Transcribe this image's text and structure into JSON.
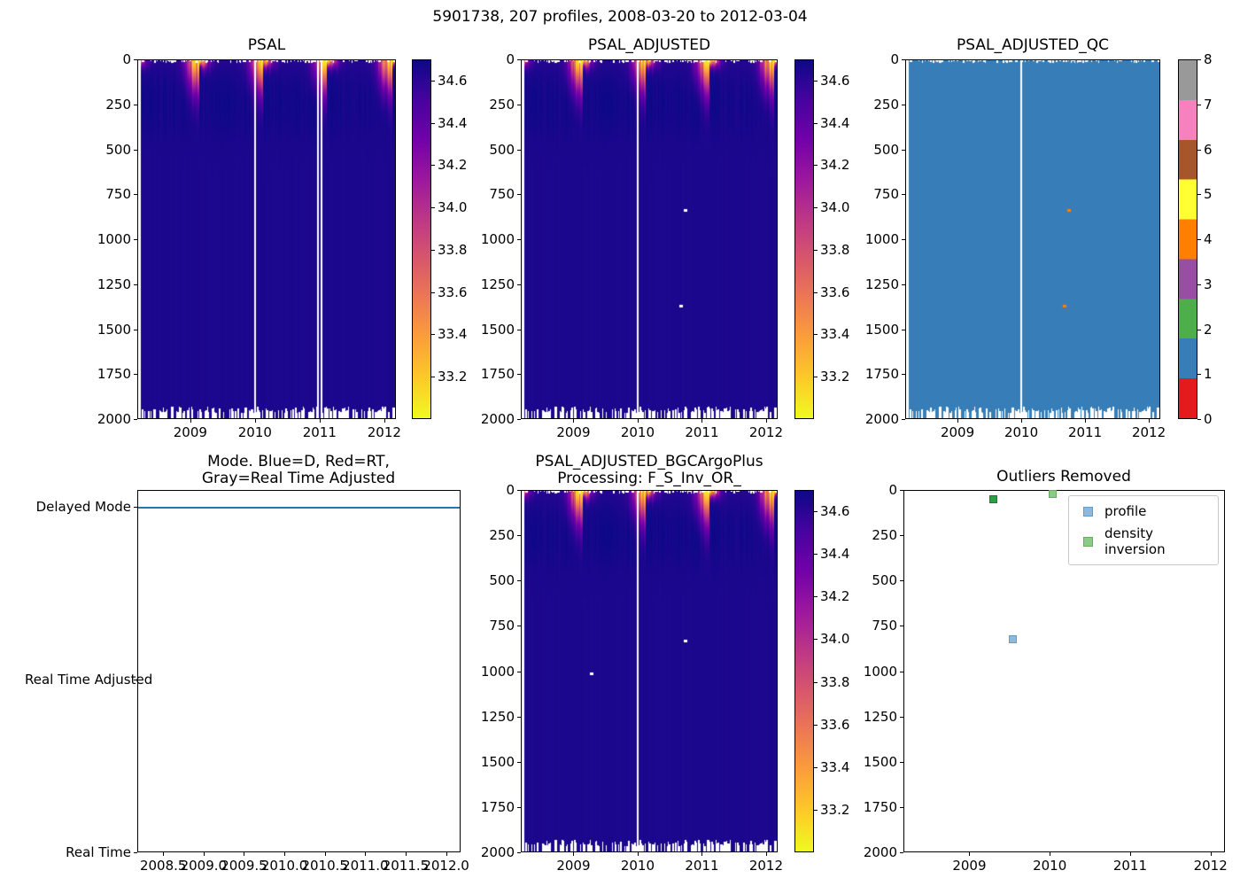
{
  "figure": {
    "title": "5901738, 207 profiles, 2008-03-20 to 2012-03-04",
    "platform_id": "5901738",
    "n_profiles": 207,
    "date_start": "2008-03-20",
    "date_end": "2012-03-04",
    "background": "#ffffff"
  },
  "chart_data": [
    {
      "type": "heatmap",
      "title": "PSAL",
      "x_axis": {
        "min": 2008.18,
        "max": 2012.18,
        "ticks": [
          [
            2009,
            "2009"
          ],
          [
            2010,
            "2010"
          ],
          [
            2011,
            "2011"
          ],
          [
            2012,
            "2012"
          ]
        ]
      },
      "y_axis": {
        "min": 0,
        "max": 2000,
        "inverted": true,
        "ticks": [
          [
            0,
            "0"
          ],
          [
            250,
            "250"
          ],
          [
            500,
            "500"
          ],
          [
            750,
            "750"
          ],
          [
            1000,
            "1000"
          ],
          [
            1250,
            "1250"
          ],
          [
            1500,
            "1500"
          ],
          [
            1750,
            "1750"
          ],
          [
            2000,
            "2000"
          ]
        ]
      },
      "colorbar": {
        "vmin": 33.0,
        "vmax": 34.7,
        "colormap": "plasma_r",
        "ticks": [
          [
            34.6,
            "34.6"
          ],
          [
            34.4,
            "34.4"
          ],
          [
            34.2,
            "34.2"
          ],
          [
            34.0,
            "34.0"
          ],
          [
            33.8,
            "33.8"
          ],
          [
            33.6,
            "33.6"
          ],
          [
            33.4,
            "33.4"
          ],
          [
            33.2,
            "33.2"
          ]
        ]
      },
      "n_profiles": 207,
      "data_time_range": [
        2008.22,
        2012.17
      ],
      "deep_value": 34.65,
      "surface_summer_min": 33.1,
      "missing_profile_lines": [
        2010.0,
        2010.98,
        2011.04
      ],
      "flagged_points": []
    },
    {
      "type": "heatmap",
      "title": "PSAL_ADJUSTED",
      "x_axis": {
        "min": 2008.18,
        "max": 2012.18,
        "ticks": [
          [
            2009,
            "2009"
          ],
          [
            2010,
            "2010"
          ],
          [
            2011,
            "2011"
          ],
          [
            2012,
            "2012"
          ]
        ]
      },
      "y_axis": {
        "min": 0,
        "max": 2000,
        "inverted": true,
        "ticks": [
          [
            0,
            "0"
          ],
          [
            250,
            "250"
          ],
          [
            500,
            "500"
          ],
          [
            750,
            "750"
          ],
          [
            1000,
            "1000"
          ],
          [
            1250,
            "1250"
          ],
          [
            1500,
            "1500"
          ],
          [
            1750,
            "1750"
          ],
          [
            2000,
            "2000"
          ]
        ]
      },
      "colorbar": {
        "vmin": 33.0,
        "vmax": 34.7,
        "colormap": "plasma_r",
        "ticks": [
          [
            34.6,
            "34.6"
          ],
          [
            34.4,
            "34.4"
          ],
          [
            34.2,
            "34.2"
          ],
          [
            34.0,
            "34.0"
          ],
          [
            33.8,
            "33.8"
          ],
          [
            33.6,
            "33.6"
          ],
          [
            33.4,
            "33.4"
          ],
          [
            33.2,
            "33.2"
          ]
        ]
      },
      "n_profiles": 207,
      "data_time_range": [
        2008.22,
        2012.17
      ],
      "deep_value": 34.65,
      "surface_summer_min": 33.1,
      "missing_profile_lines": [
        2010.0
      ],
      "flagged_points": [
        {
          "t": 2010.75,
          "depth": 837,
          "color": "#ffffff"
        },
        {
          "t": 2010.68,
          "depth": 1369,
          "color": "#ffffff"
        }
      ]
    },
    {
      "type": "heatmap",
      "title": "PSAL_ADJUSTED_QC",
      "x_axis": {
        "min": 2008.18,
        "max": 2012.18,
        "ticks": [
          [
            2009,
            "2009"
          ],
          [
            2010,
            "2010"
          ],
          [
            2011,
            "2011"
          ],
          [
            2012,
            "2012"
          ]
        ]
      },
      "y_axis": {
        "min": 0,
        "max": 2000,
        "inverted": true,
        "ticks": [
          [
            0,
            "0"
          ],
          [
            250,
            "250"
          ],
          [
            500,
            "500"
          ],
          [
            750,
            "750"
          ],
          [
            1000,
            "1000"
          ],
          [
            1250,
            "1250"
          ],
          [
            1500,
            "1500"
          ],
          [
            1750,
            "1750"
          ],
          [
            2000,
            "2000"
          ]
        ]
      },
      "dominant_value": 1,
      "dominant_color": "#377eb8",
      "colorbar": {
        "vmin": 0,
        "vmax": 8,
        "colors": [
          "#e41a1c",
          "#377eb8",
          "#4daf4a",
          "#984ea3",
          "#ff7f00",
          "#ffff33",
          "#a65628",
          "#f781bf",
          "#999999"
        ],
        "ticks": [
          [
            0,
            "0"
          ],
          [
            1,
            "1"
          ],
          [
            2,
            "2"
          ],
          [
            3,
            "3"
          ],
          [
            4,
            "4"
          ],
          [
            5,
            "5"
          ],
          [
            6,
            "6"
          ],
          [
            7,
            "7"
          ],
          [
            8,
            "8"
          ]
        ]
      },
      "n_profiles": 207,
      "data_time_range": [
        2008.22,
        2012.17
      ],
      "missing_profile_lines": [
        2010.0
      ],
      "flagged_points": [
        {
          "t": 2010.75,
          "depth": 837,
          "value": 4,
          "color": "#ff7f00"
        },
        {
          "t": 2010.68,
          "depth": 1369,
          "value": 4,
          "color": "#ff7f00"
        }
      ]
    },
    {
      "type": "line",
      "title_line1": "Mode. Blue=D, Red=RT,",
      "title_line2": "Gray=Real Time Adjusted",
      "x_axis": {
        "min": 2008.18,
        "max": 2012.18,
        "ticks": [
          [
            2008.5,
            "2008.5"
          ],
          [
            2009.0,
            "2009.0"
          ],
          [
            2009.5,
            "2009.5"
          ],
          [
            2010.0,
            "2010.0"
          ],
          [
            2010.5,
            "2010.5"
          ],
          [
            2011.0,
            "2011.0"
          ],
          [
            2011.5,
            "2011.5"
          ],
          [
            2012.0,
            "2012.0"
          ]
        ]
      },
      "y_axis": {
        "ylim": [
          0,
          2.1
        ],
        "categories": [
          [
            "Delayed Mode",
            2
          ],
          [
            "Real Time Adjusted",
            1
          ],
          [
            "Real Time",
            0
          ]
        ]
      },
      "series": [
        {
          "name": "mode",
          "color": "#1f77b4",
          "y_value": "Delayed Mode",
          "x_start": 2008.22,
          "x_end": 2012.17
        }
      ]
    },
    {
      "type": "heatmap",
      "title_line1": "PSAL_ADJUSTED_BGCArgoPlus",
      "title_line2": "Processing: F_S_Inv_OR_",
      "x_axis": {
        "min": 2008.18,
        "max": 2012.18,
        "ticks": [
          [
            2009,
            "2009"
          ],
          [
            2010,
            "2010"
          ],
          [
            2011,
            "2011"
          ],
          [
            2012,
            "2012"
          ]
        ]
      },
      "y_axis": {
        "min": 0,
        "max": 2000,
        "inverted": true,
        "ticks": [
          [
            0,
            "0"
          ],
          [
            250,
            "250"
          ],
          [
            500,
            "500"
          ],
          [
            750,
            "750"
          ],
          [
            1000,
            "1000"
          ],
          [
            1250,
            "1250"
          ],
          [
            1500,
            "1500"
          ],
          [
            1750,
            "1750"
          ],
          [
            2000,
            "2000"
          ]
        ]
      },
      "colorbar": {
        "vmin": 33.0,
        "vmax": 34.7,
        "colormap": "plasma_r",
        "ticks": [
          [
            34.6,
            "34.6"
          ],
          [
            34.4,
            "34.4"
          ],
          [
            34.2,
            "34.2"
          ],
          [
            34.0,
            "34.0"
          ],
          [
            33.8,
            "33.8"
          ],
          [
            33.6,
            "33.6"
          ],
          [
            33.4,
            "33.4"
          ],
          [
            33.2,
            "33.2"
          ]
        ]
      },
      "n_profiles": 207,
      "data_time_range": [
        2008.22,
        2012.17
      ],
      "deep_value": 34.65,
      "surface_summer_min": 33.1,
      "missing_profile_lines": [
        2010.0
      ],
      "flagged_points": [
        {
          "t": 2010.75,
          "depth": 831,
          "color": "#ffffff"
        },
        {
          "t": 2009.28,
          "depth": 1012,
          "color": "#ffffff"
        }
      ]
    },
    {
      "type": "scatter",
      "title": "Outliers Removed",
      "x_axis": {
        "min": 2008.18,
        "max": 2012.18,
        "ticks": [
          [
            2009,
            "2009"
          ],
          [
            2010,
            "2010"
          ],
          [
            2011,
            "2011"
          ],
          [
            2012,
            "2012"
          ]
        ]
      },
      "y_axis": {
        "min": 0,
        "max": 2000,
        "inverted": true,
        "ticks": [
          [
            0,
            "0"
          ],
          [
            250,
            "250"
          ],
          [
            500,
            "500"
          ],
          [
            750,
            "750"
          ],
          [
            1000,
            "1000"
          ],
          [
            1250,
            "1250"
          ],
          [
            1500,
            "1500"
          ],
          [
            1750,
            "1750"
          ],
          [
            2000,
            "2000"
          ]
        ]
      },
      "series": [
        {
          "name": "profile",
          "color": "#8cb9dd",
          "edge": "#649cc8",
          "points": [
            {
              "t": 2009.54,
              "depth": 826
            }
          ]
        },
        {
          "name": "density inversion",
          "color": "#8ccb86",
          "edge": "#69ab62",
          "points": [
            {
              "t": 2009.3,
              "depth": 49,
              "color": "#2f9e44",
              "edge": "#1f7a33"
            },
            {
              "t": 2010.04,
              "depth": 20
            }
          ]
        }
      ],
      "legend": {
        "position": "upper right"
      }
    }
  ]
}
